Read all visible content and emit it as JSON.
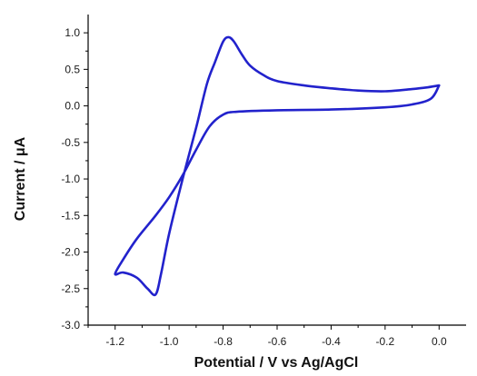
{
  "chart_data": {
    "type": "line",
    "title": "",
    "xlabel": "Potential / V vs Ag/AgCl",
    "ylabel": "Current / μA",
    "xlim": [
      -1.3,
      0.1
    ],
    "ylim": [
      -3.0,
      1.25
    ],
    "grid": false,
    "x_ticks": [
      "-1.2",
      "-1.0",
      "-0.8",
      "-0.6",
      "-0.4",
      "-0.2",
      "0.0"
    ],
    "y_ticks": [
      "1.0",
      "0.5",
      "0.0",
      "-0.5",
      "-1.0",
      "-1.5",
      "-2.0",
      "-2.5",
      "-3.0"
    ],
    "series": [
      {
        "color": "#2222cc",
        "points": [
          [
            0.0,
            0.28
          ],
          [
            -0.05,
            0.25
          ],
          [
            -0.1,
            0.23
          ],
          [
            -0.2,
            0.2
          ],
          [
            -0.3,
            0.21
          ],
          [
            -0.4,
            0.24
          ],
          [
            -0.5,
            0.28
          ],
          [
            -0.6,
            0.34
          ],
          [
            -0.65,
            0.42
          ],
          [
            -0.7,
            0.55
          ],
          [
            -0.73,
            0.7
          ],
          [
            -0.76,
            0.88
          ],
          [
            -0.78,
            0.94
          ],
          [
            -0.8,
            0.88
          ],
          [
            -0.83,
            0.6
          ],
          [
            -0.86,
            0.3
          ],
          [
            -0.9,
            -0.3
          ],
          [
            -0.95,
            -1.0
          ],
          [
            -1.0,
            -1.75
          ],
          [
            -1.03,
            -2.3
          ],
          [
            -1.05,
            -2.58
          ],
          [
            -1.08,
            -2.5
          ],
          [
            -1.12,
            -2.35
          ],
          [
            -1.17,
            -2.28
          ],
          [
            -1.2,
            -2.3
          ],
          [
            -1.17,
            -2.1
          ],
          [
            -1.12,
            -1.82
          ],
          [
            -1.05,
            -1.5
          ],
          [
            -1.0,
            -1.25
          ],
          [
            -0.95,
            -0.95
          ],
          [
            -0.9,
            -0.6
          ],
          [
            -0.85,
            -0.28
          ],
          [
            -0.8,
            -0.12
          ],
          [
            -0.75,
            -0.08
          ],
          [
            -0.6,
            -0.06
          ],
          [
            -0.4,
            -0.05
          ],
          [
            -0.2,
            -0.02
          ],
          [
            -0.1,
            0.02
          ],
          [
            -0.03,
            0.1
          ],
          [
            0.0,
            0.28
          ]
        ]
      }
    ]
  }
}
